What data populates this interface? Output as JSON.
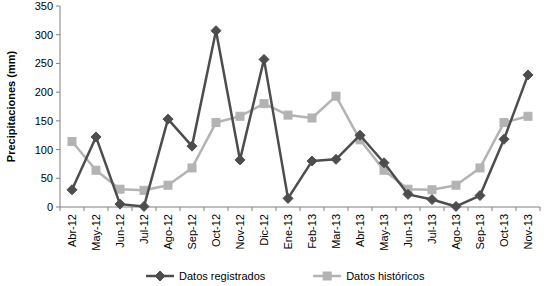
{
  "chart_data": {
    "type": "line",
    "y_label": "Precipitaciones (mm)",
    "categories": [
      "Abr-12",
      "May-12",
      "Jun-12",
      "Jul-12",
      "Ago-12",
      "Sep-12",
      "Oct-12",
      "Nov-12",
      "Dic-12",
      "Ene-13",
      "Feb-13",
      "Mar-13",
      "Abr-13",
      "May-13",
      "Jun-13",
      "Jul-13",
      "Ago-13",
      "Sep-13",
      "Oct-13",
      "Nov-13"
    ],
    "series": [
      {
        "name": "Datos registrados",
        "color": "#4d4d4d",
        "marker": "diamond",
        "values": [
          30,
          122,
          5,
          1,
          153,
          106,
          307,
          82,
          257,
          15,
          80,
          83,
          125,
          77,
          22,
          13,
          1,
          20,
          118,
          230
        ]
      },
      {
        "name": "Datos históricos",
        "color": "#b3b3b3",
        "marker": "square",
        "values": [
          114,
          64,
          31,
          29,
          38,
          68,
          147,
          158,
          180,
          160,
          155,
          193,
          117,
          64,
          31,
          30,
          38,
          68,
          147,
          158
        ]
      }
    ],
    "ylim": [
      0,
      350
    ],
    "yticks": [
      0,
      50,
      100,
      150,
      200,
      250,
      300,
      350
    ],
    "grid": false,
    "legend": "bottom"
  }
}
